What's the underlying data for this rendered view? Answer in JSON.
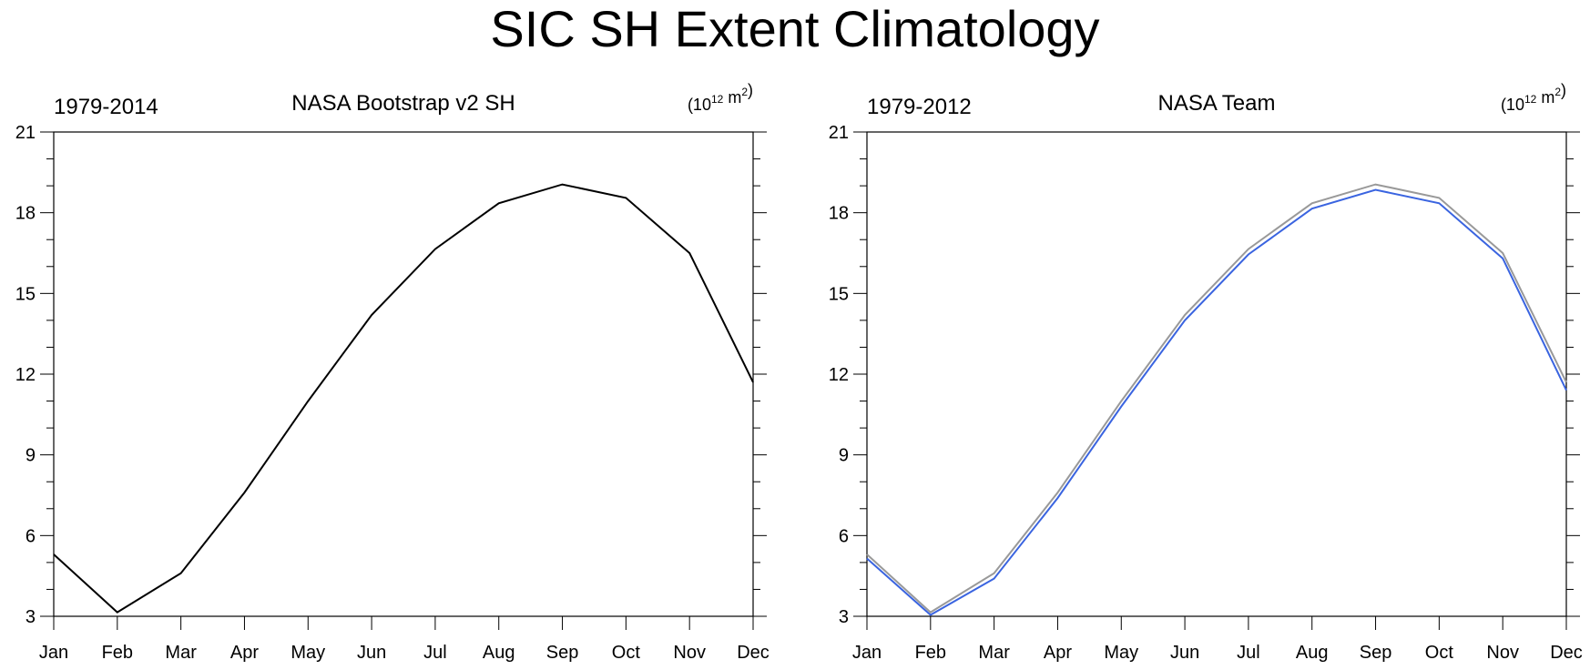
{
  "page": {
    "title": "SIC SH Extent Climatology"
  },
  "chart_data": [
    {
      "type": "line",
      "title": "NASA Bootstrap v2 SH",
      "left_label": "1979-2014",
      "units": {
        "base": "(10",
        "exp": "12",
        "mid": " m",
        "exp2": "2",
        "end": ")"
      },
      "categories": [
        "Jan",
        "Feb",
        "Mar",
        "Apr",
        "May",
        "Jun",
        "Jul",
        "Aug",
        "Sep",
        "Oct",
        "Nov",
        "Dec"
      ],
      "ylim": [
        3,
        21
      ],
      "yticks": [
        3,
        6,
        9,
        12,
        15,
        18,
        21
      ],
      "series": [
        {
          "color": "#000000",
          "values": [
            5.3,
            3.15,
            4.6,
            7.6,
            11.0,
            14.2,
            16.65,
            18.35,
            19.05,
            18.55,
            16.5,
            11.7
          ]
        }
      ]
    },
    {
      "type": "line",
      "title": "NASA Team",
      "left_label": "1979-2012",
      "units": {
        "base": "(10",
        "exp": "12",
        "mid": " m",
        "exp2": "2",
        "end": ")"
      },
      "categories": [
        "Jan",
        "Feb",
        "Mar",
        "Apr",
        "May",
        "Jun",
        "Jul",
        "Aug",
        "Sep",
        "Oct",
        "Nov",
        "Dec"
      ],
      "ylim": [
        3,
        21
      ],
      "yticks": [
        3,
        6,
        9,
        12,
        15,
        18,
        21
      ],
      "series": [
        {
          "color": "#999999",
          "values": [
            5.3,
            3.15,
            4.6,
            7.6,
            11.0,
            14.2,
            16.65,
            18.35,
            19.05,
            18.55,
            16.5,
            11.7
          ]
        },
        {
          "color": "#3a64e0",
          "values": [
            5.15,
            3.05,
            4.4,
            7.4,
            10.8,
            14.0,
            16.45,
            18.15,
            18.85,
            18.35,
            16.3,
            11.4
          ]
        }
      ]
    }
  ]
}
